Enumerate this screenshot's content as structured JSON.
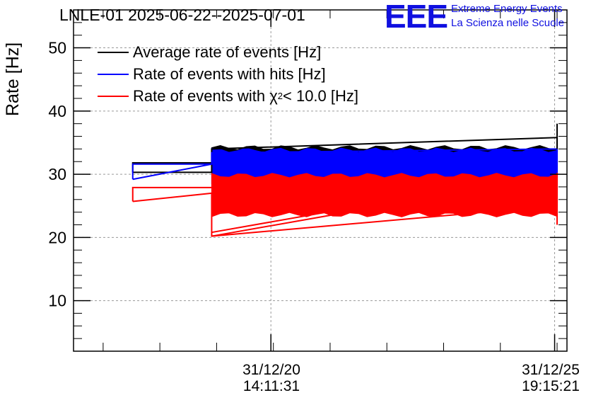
{
  "chart_data": {
    "type": "line",
    "title": "LNLE-01 2025-06-22--2025-07-01",
    "ylabel": "Rate [Hz]",
    "xlabel": "",
    "ylim": [
      2,
      56
    ],
    "yticks": [
      10,
      20,
      30,
      40,
      50
    ],
    "xticks": [
      {
        "date": "31/12/20",
        "time": "14:11:31"
      },
      {
        "date": "31/12/25",
        "time": "19:15:21"
      }
    ],
    "grid": true,
    "legend_position": "top-left",
    "series": [
      {
        "name": "Average rate of events [Hz]",
        "color": "#000000",
        "x": [
          0.12,
          0.12,
          0.28,
          0.28,
          0.98,
          0.98
        ],
        "y": [
          30.3,
          31.8,
          30.3,
          34.0,
          35.8,
          33.5
        ],
        "band": [
          31.5,
          34.2
        ]
      },
      {
        "name": "Rate of events with hits [Hz]",
        "color": "#0000ff",
        "x": [
          0.12,
          0.12,
          0.28,
          0.28,
          0.98,
          0.98
        ],
        "y": [
          29.2,
          31.6,
          31.6,
          33.4,
          34.0,
          29.4
        ],
        "band": [
          28.8,
          33.8
        ]
      },
      {
        "name": "Rate of events with χ² < 10.0 [Hz]",
        "color": "#ff0000",
        "x": [
          0.12,
          0.12,
          0.28,
          0.28,
          0.98,
          0.98
        ],
        "y": [
          25.7,
          27.9,
          27.0,
          20.2,
          25.0,
          30.2
        ],
        "band": [
          23.6,
          29.8
        ]
      }
    ]
  },
  "logo": {
    "letters": "EEE",
    "line1": "Extreme Energy Events",
    "line2": "La Scienza nelle Scuole"
  },
  "legend": {
    "item0": "Average rate of events [Hz]",
    "item1": "Rate of events with hits [Hz]",
    "item2_prefix": "Rate of events with χ",
    "item2_sup": "2",
    "item2_suffix": " < 10.0 [Hz]"
  }
}
